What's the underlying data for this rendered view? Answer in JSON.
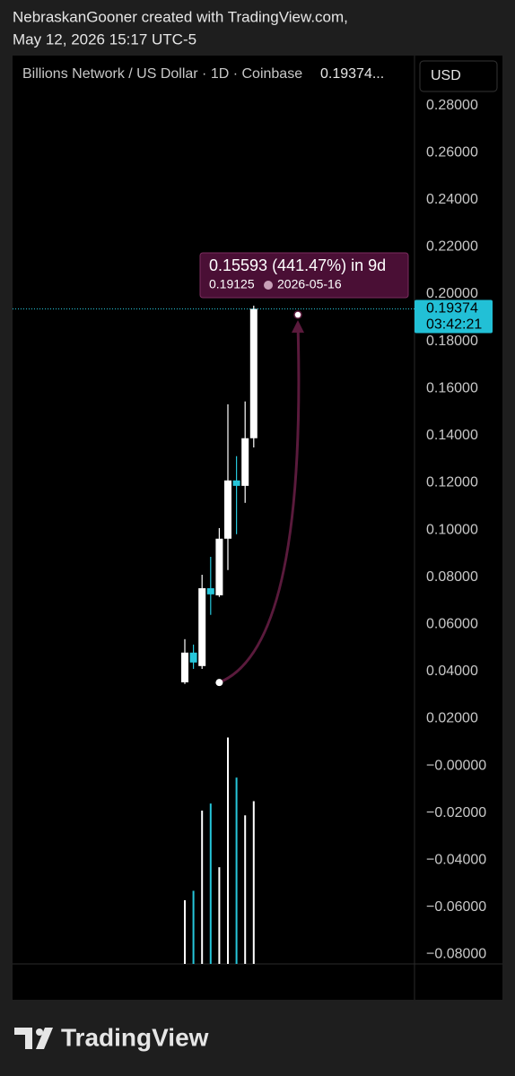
{
  "header": {
    "line1": "NebraskanGooner created with TradingView.com,",
    "line2": "May 12, 2026 15:17 UTC-5"
  },
  "footer": {
    "brand": "TradingView"
  },
  "chart_data": {
    "type": "candlestick",
    "legend_title": "Billions Network / US Dollar · 1D · Coinbase",
    "legend_price": "0.19374...",
    "currency": "USD",
    "categories": [
      null,
      null,
      null,
      null,
      null,
      null,
      null,
      null,
      null
    ],
    "open": [
      0.0354,
      0.048,
      0.0423,
      0.0753,
      0.0723,
      0.0963,
      0.121,
      0.1187,
      0.1389
    ],
    "high": [
      0.0537,
      0.0514,
      0.081,
      0.0886,
      0.1008,
      0.1533,
      0.1313,
      0.1545,
      0.1951
    ],
    "low": [
      0.0347,
      0.0411,
      0.0411,
      0.064,
      0.0716,
      0.083,
      0.0982,
      0.1115,
      0.135
    ],
    "close": [
      0.048,
      0.0438,
      0.0753,
      0.0727,
      0.0963,
      0.121,
      0.1187,
      0.1389,
      0.19374
    ],
    "volume": [
      0.027,
      0.031,
      0.065,
      0.068,
      0.041,
      0.096,
      0.079,
      0.063,
      0.069
    ],
    "up_color": "#ffffff",
    "down_color": "#26c6da",
    "last_price": 0.19374,
    "countdown": "03:42:21",
    "measure": {
      "text": "0.15593 (441.47%) in 9d",
      "start": 0.03532,
      "end": 0.19125,
      "date": "2026-05-16"
    },
    "ylim": [
      -0.084,
      0.3
    ],
    "yticks": [
      {
        "value": 0.28,
        "label": "0.28000"
      },
      {
        "value": 0.26,
        "label": "0.26000"
      },
      {
        "value": 0.24,
        "label": "0.24000"
      },
      {
        "value": 0.22,
        "label": "0.22000"
      },
      {
        "value": 0.2,
        "label": "0.20000"
      },
      {
        "value": 0.18,
        "label": "0.18000"
      },
      {
        "value": 0.16,
        "label": "0.16000"
      },
      {
        "value": 0.14,
        "label": "0.14000"
      },
      {
        "value": 0.12,
        "label": "0.12000"
      },
      {
        "value": 0.1,
        "label": "0.10000"
      },
      {
        "value": 0.08,
        "label": "0.08000"
      },
      {
        "value": 0.06,
        "label": "0.06000"
      },
      {
        "value": 0.04,
        "label": "0.04000"
      },
      {
        "value": 0.02,
        "label": "0.02000"
      },
      {
        "value": 0,
        "label": "−0.00000"
      },
      {
        "value": -0.02,
        "label": "−0.02000"
      },
      {
        "value": -0.04,
        "label": "−0.04000"
      },
      {
        "value": -0.06,
        "label": "−0.06000"
      },
      {
        "value": -0.08,
        "label": "−0.08000"
      }
    ]
  }
}
